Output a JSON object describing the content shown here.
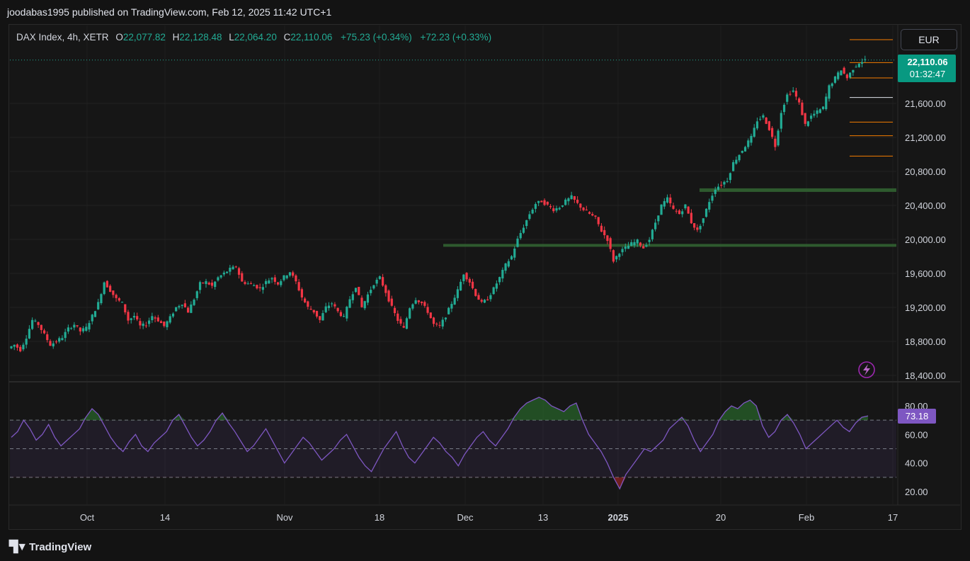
{
  "header": {
    "text": "joodabas1995 published on TradingView.com, Feb 12, 2025 11:42 UTC+1"
  },
  "legend": {
    "symbol": "DAX Index, 4h, XETR",
    "open_label": "O",
    "open": "22,077.82",
    "high_label": "H",
    "high": "22,128.48",
    "low_label": "L",
    "low": "22,064.20",
    "close_label": "C",
    "close": "22,110.06",
    "change": "+75.23 (+0.34%)",
    "change2": "+72.23 (+0.33%)"
  },
  "currency": "EUR",
  "price_tag": {
    "price": "22,110.06",
    "countdown": "01:32:47"
  },
  "rsi_tag": "73.18",
  "footer": {
    "brand": "TradingView"
  },
  "colors": {
    "up": "#22ab94",
    "down": "#f23645",
    "rsi": "#7e57c2",
    "zone": "#2e5a2e",
    "fib": "#f57c00",
    "bg": "#161616"
  },
  "icons": {
    "logo": "tradingview-logo-icon",
    "alert": "lightning-icon"
  },
  "chart_data": [
    {
      "type": "candlestick",
      "title": "",
      "yaxis": {
        "side": "right",
        "ylim": [
          18300,
          22600
        ],
        "ticks": [
          "18,400.00",
          "18,800.00",
          "19,200.00",
          "19,600.00",
          "20,000.00",
          "20,400.00",
          "20,800.00",
          "21,200.00",
          "21,600.00"
        ],
        "tick_values": [
          18400,
          18800,
          19200,
          19600,
          20000,
          20400,
          20800,
          21200,
          21600
        ]
      },
      "xaxis": {
        "labels": [
          "Oct",
          "14",
          "Nov",
          "18",
          "Dec",
          "13",
          "2025",
          "20",
          "Feb",
          "17"
        ]
      },
      "path_close": [
        18720,
        18760,
        18700,
        18850,
        19050,
        19000,
        18880,
        18760,
        18800,
        18850,
        18950,
        19000,
        18920,
        18960,
        19100,
        19250,
        19500,
        19400,
        19300,
        19250,
        19050,
        19100,
        18980,
        19000,
        19100,
        19050,
        18980,
        19080,
        19200,
        19250,
        19150,
        19300,
        19480,
        19500,
        19450,
        19550,
        19600,
        19650,
        19680,
        19500,
        19480,
        19460,
        19420,
        19500,
        19550,
        19480,
        19560,
        19620,
        19500,
        19320,
        19200,
        19150,
        19050,
        19200,
        19250,
        19150,
        19080,
        19300,
        19450,
        19200,
        19350,
        19480,
        19550,
        19380,
        19200,
        19050,
        18950,
        19200,
        19300,
        19250,
        19150,
        19000,
        18980,
        19100,
        19250,
        19400,
        19600,
        19500,
        19350,
        19250,
        19300,
        19420,
        19550,
        19700,
        19800,
        20000,
        20150,
        20300,
        20420,
        20450,
        20400,
        20350,
        20380,
        20450,
        20500,
        20420,
        20350,
        20300,
        20250,
        20100,
        20000,
        19750,
        19850,
        19900,
        19950,
        19980,
        19900,
        20000,
        20200,
        20400,
        20480,
        20350,
        20300,
        20400,
        20200,
        20100,
        20250,
        20450,
        20600,
        20650,
        20700,
        20900,
        21000,
        21100,
        21200,
        21400,
        21450,
        21300,
        21100,
        21500,
        21700,
        21750,
        21600,
        21350,
        21450,
        21500,
        21550,
        21800,
        21900,
        22000,
        21900,
        22010,
        22080,
        22110
      ],
      "annotations": {
        "support_zones": [
          19930,
          20580
        ],
        "fib_levels": [
          22350,
          22080,
          21900,
          21380,
          21220,
          20980
        ],
        "white_level": 21670,
        "last_price": 22110.06
      }
    },
    {
      "type": "line",
      "title": "",
      "series": [
        {
          "values": [
            58,
            62,
            70,
            64,
            56,
            60,
            67,
            58,
            52,
            56,
            60,
            64,
            72,
            78,
            74,
            66,
            58,
            52,
            48,
            55,
            60,
            52,
            48,
            54,
            58,
            62,
            70,
            74,
            66,
            58,
            52,
            56,
            62,
            70,
            75,
            68,
            62,
            55,
            48,
            52,
            58,
            64,
            56,
            48,
            40,
            46,
            52,
            58,
            54,
            48,
            42,
            46,
            50,
            56,
            60,
            52,
            44,
            38,
            34,
            42,
            50,
            56,
            62,
            52,
            44,
            40,
            46,
            52,
            58,
            54,
            48,
            44,
            38,
            46,
            52,
            58,
            62,
            56,
            52,
            58,
            64,
            72,
            78,
            82,
            84,
            86,
            84,
            80,
            78,
            76,
            80,
            82,
            70,
            60,
            54,
            48,
            40,
            30,
            22,
            32,
            38,
            44,
            50,
            48,
            52,
            56,
            64,
            68,
            72,
            66,
            56,
            48,
            54,
            60,
            70,
            76,
            80,
            78,
            82,
            84,
            80,
            66,
            58,
            62,
            70,
            74,
            68,
            60,
            50,
            54,
            58,
            62,
            66,
            70,
            65,
            62,
            68,
            72,
            73
          ]
        }
      ],
      "ylim": [
        15,
        90
      ],
      "yticks": [
        "20.00",
        "40.00",
        "60.00",
        "80.00"
      ],
      "ytick_values": [
        20,
        40,
        60,
        80
      ],
      "bands": [
        30,
        50,
        70
      ]
    }
  ]
}
